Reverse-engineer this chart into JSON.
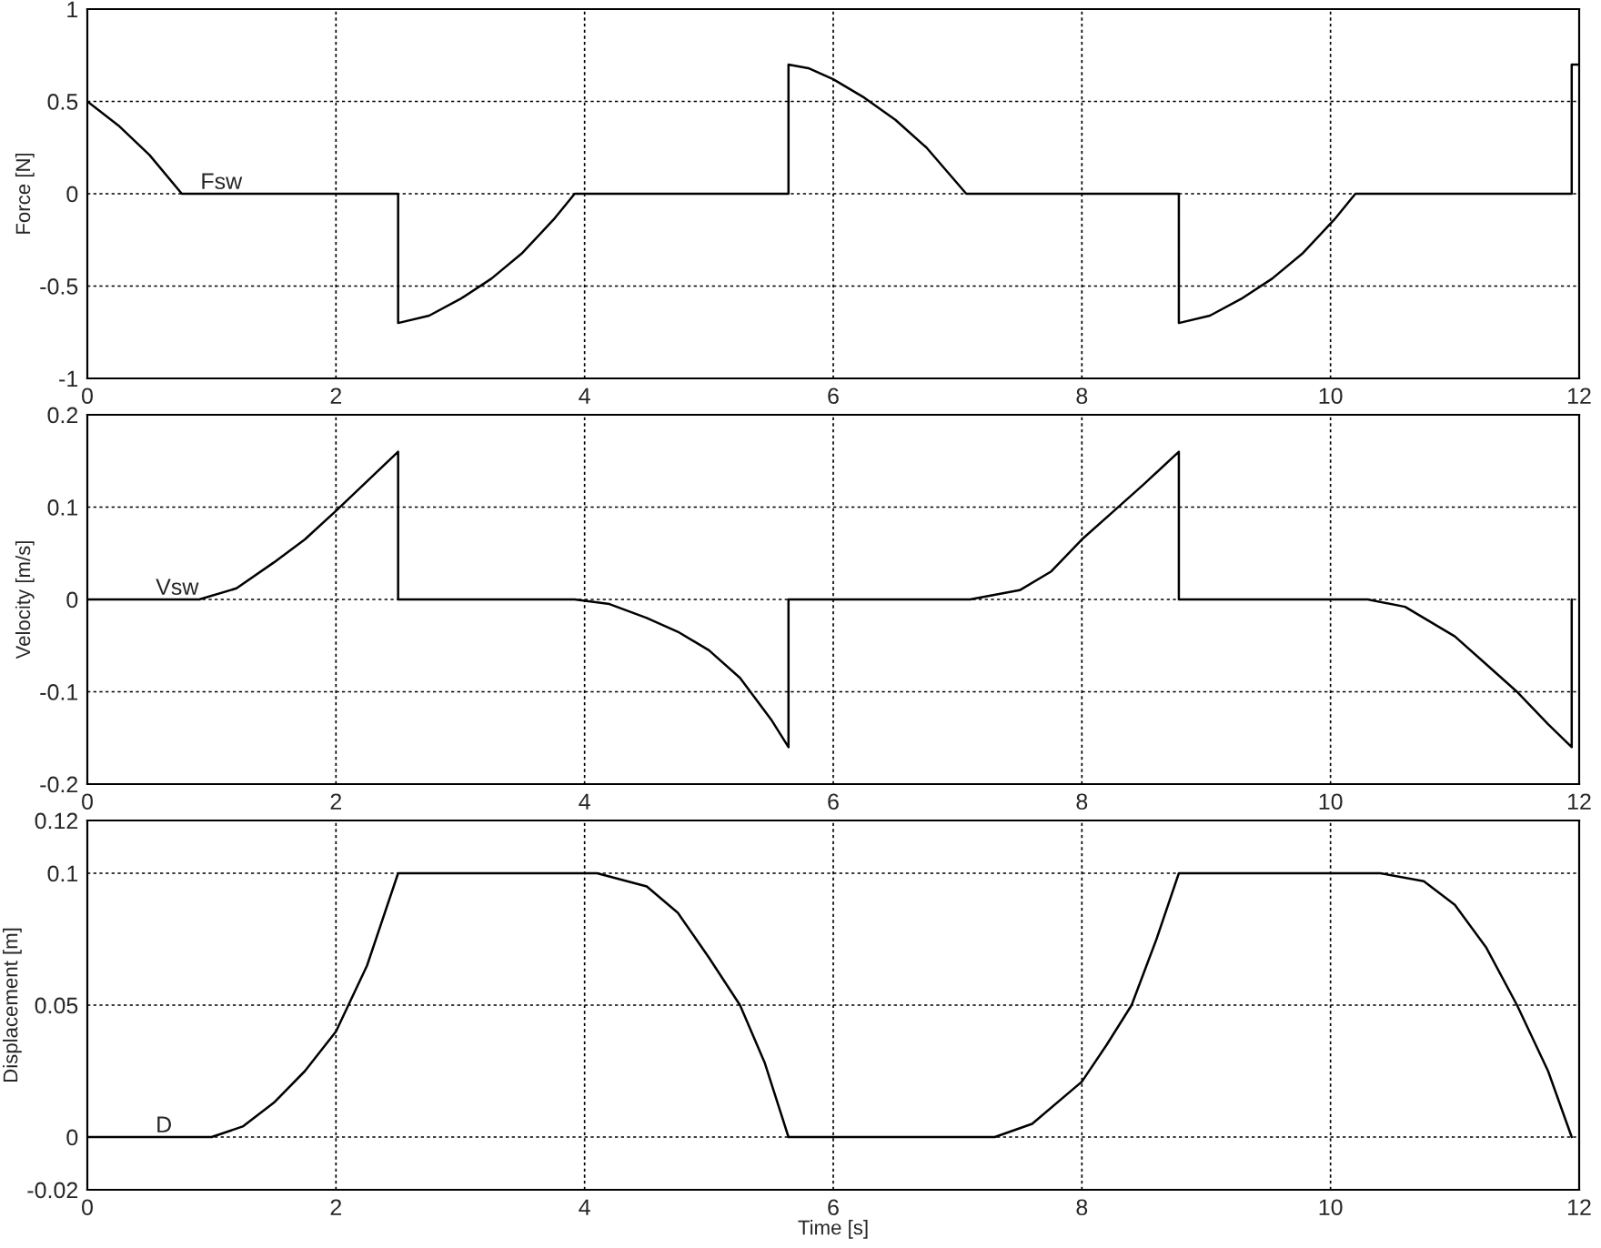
{
  "chart_data": [
    {
      "type": "line",
      "ylabel": "Force [N]",
      "xlim": [
        0,
        12
      ],
      "xticks": [
        0,
        2,
        4,
        6,
        8,
        10,
        12
      ],
      "ylim": [
        -1,
        1
      ],
      "yticks": [
        -1,
        -0.5,
        0,
        0.5,
        1
      ],
      "grid": true,
      "line_style": "solid",
      "series": [
        {
          "name": "Fsw",
          "color": "#000000",
          "x": [
            0,
            0.25,
            0.5,
            0.76,
            2.5,
            2.5,
            2.75,
            3.0,
            3.25,
            3.5,
            3.75,
            3.92,
            5.64,
            5.64,
            5.8,
            6.0,
            6.25,
            6.5,
            6.75,
            7.07,
            8.78,
            8.78,
            9.03,
            9.28,
            9.53,
            9.78,
            10.03,
            10.2,
            11.94,
            11.94,
            12
          ],
          "values": [
            0.5,
            0.37,
            0.21,
            0,
            0,
            -0.7,
            -0.66,
            -0.57,
            -0.46,
            -0.32,
            -0.14,
            0,
            0,
            0.7,
            0.68,
            0.62,
            0.52,
            0.4,
            0.25,
            0,
            0,
            -0.7,
            -0.66,
            -0.57,
            -0.46,
            -0.32,
            -0.14,
            0,
            0,
            0.7,
            0.7
          ]
        }
      ]
    },
    {
      "type": "line",
      "ylabel": "Velocity [m/s]",
      "xlim": [
        0,
        12
      ],
      "xticks": [
        0,
        2,
        4,
        6,
        8,
        10,
        12
      ],
      "ylim": [
        -0.2,
        0.2
      ],
      "yticks": [
        -0.2,
        -0.1,
        0,
        0.1,
        0.2
      ],
      "grid": true,
      "line_style": "solid",
      "series": [
        {
          "name": "Vsw",
          "color": "#000000",
          "x": [
            0,
            0.9,
            1.2,
            1.5,
            1.75,
            2.0,
            2.25,
            2.5,
            2.5,
            3.92,
            4.2,
            4.5,
            4.75,
            5.0,
            5.25,
            5.5,
            5.64,
            5.64,
            7.1,
            7.5,
            7.75,
            8.0,
            8.25,
            8.5,
            8.78,
            8.78,
            10.3,
            10.6,
            11.0,
            11.25,
            11.5,
            11.75,
            11.94,
            11.94
          ],
          "values": [
            0,
            0,
            0.012,
            0.04,
            0.065,
            0.096,
            0.128,
            0.16,
            0,
            0,
            -0.005,
            -0.02,
            -0.035,
            -0.055,
            -0.085,
            -0.13,
            -0.16,
            0,
            0,
            0.01,
            0.03,
            0.065,
            0.095,
            0.125,
            0.16,
            0,
            0,
            -0.008,
            -0.04,
            -0.07,
            -0.1,
            -0.135,
            -0.16,
            0
          ]
        }
      ]
    },
    {
      "type": "line",
      "xlabel": "Time [s]",
      "ylabel": "Displacement [m]",
      "xlim": [
        0,
        12
      ],
      "xticks": [
        0,
        2,
        4,
        6,
        8,
        10,
        12
      ],
      "ylim": [
        -0.02,
        0.12
      ],
      "yticks": [
        -0.02,
        0,
        0.05,
        0.1,
        0.12
      ],
      "grid": true,
      "line_style": "solid",
      "series": [
        {
          "name": "D",
          "color": "#000000",
          "x": [
            0,
            1.0,
            1.25,
            1.5,
            1.75,
            2.0,
            2.25,
            2.5,
            4.1,
            4.5,
            4.75,
            5.0,
            5.25,
            5.45,
            5.64,
            7.3,
            7.6,
            8.0,
            8.2,
            8.4,
            8.6,
            8.78,
            10.4,
            10.75,
            11.0,
            11.25,
            11.5,
            11.75,
            11.94
          ],
          "values": [
            0,
            0,
            0.004,
            0.013,
            0.025,
            0.04,
            0.065,
            0.1,
            0.1,
            0.095,
            0.085,
            0.068,
            0.05,
            0.028,
            0,
            0,
            0.005,
            0.021,
            0.035,
            0.05,
            0.075,
            0.1,
            0.1,
            0.097,
            0.088,
            0.072,
            0.05,
            0.025,
            0
          ]
        }
      ]
    }
  ]
}
